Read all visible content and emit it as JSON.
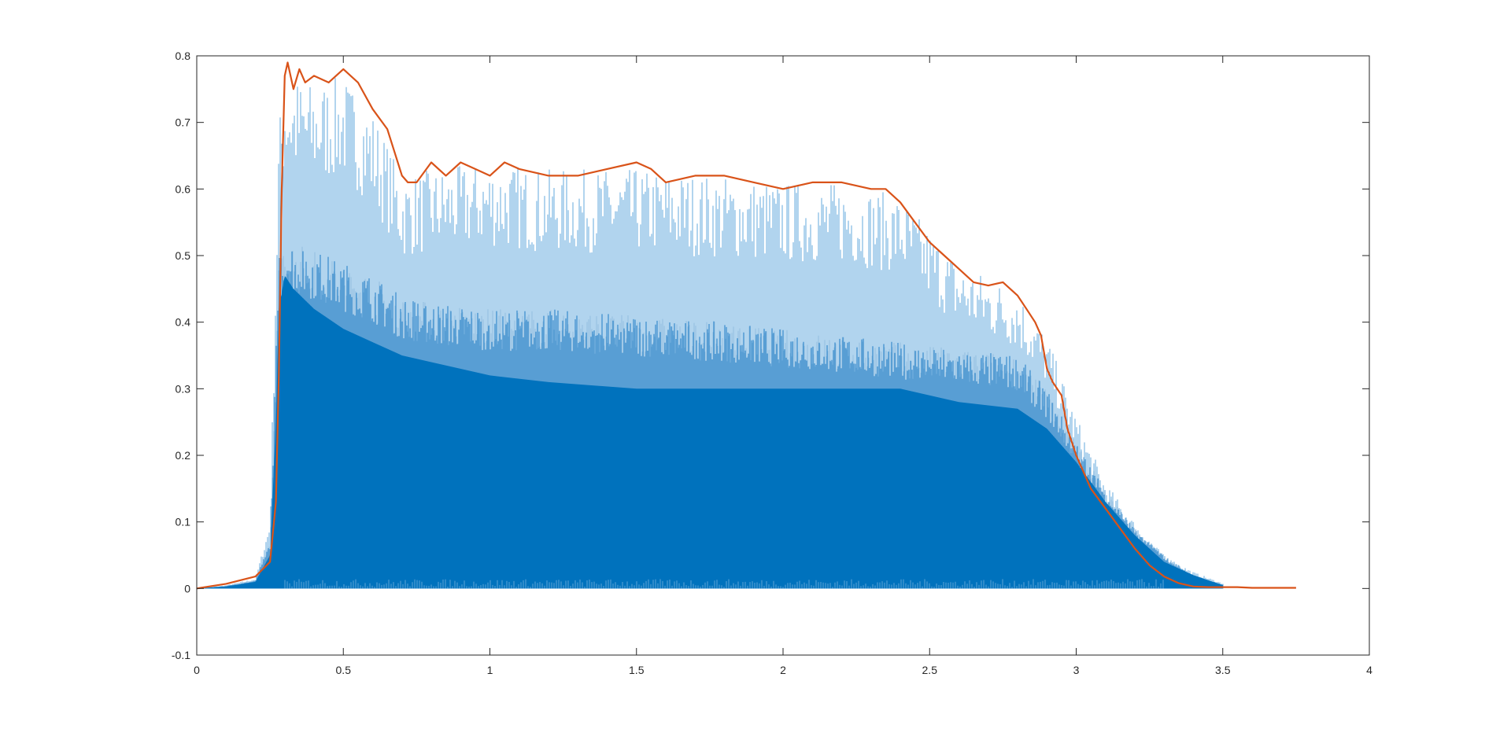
{
  "chart_data": {
    "type": "area",
    "title": "",
    "xlabel": "",
    "ylabel": "",
    "xlim": [
      0,
      4
    ],
    "ylim": [
      -0.1,
      0.8
    ],
    "x_ticks": [
      "0",
      "0.5",
      "1",
      "1.5",
      "2",
      "2.5",
      "3",
      "3.5",
      "4"
    ],
    "y_ticks": [
      "-0.1",
      "0",
      "0.1",
      "0.2",
      "0.3",
      "0.4",
      "0.5",
      "0.6",
      "0.7",
      "0.8"
    ],
    "grid": false,
    "legend": "none",
    "colors": {
      "signal": "#0072BD",
      "signal_light": "#63A8DC",
      "envelope": "#D95319",
      "axes": "#262626"
    },
    "series": [
      {
        "description_key": "signal",
        "x": [
          0,
          0.1,
          0.2,
          0.25,
          0.27,
          0.28,
          0.3,
          0.33,
          0.4,
          0.5,
          0.6,
          0.7,
          0.8,
          1.0,
          1.2,
          1.5,
          1.8,
          2.0,
          2.2,
          2.4,
          2.6,
          2.8,
          2.9,
          3.0,
          3.1,
          3.2,
          3.3,
          3.4,
          3.5
        ],
        "dense_upper": [
          0.0,
          0.003,
          0.01,
          0.05,
          0.25,
          0.42,
          0.47,
          0.45,
          0.42,
          0.39,
          0.37,
          0.35,
          0.34,
          0.32,
          0.31,
          0.3,
          0.3,
          0.3,
          0.3,
          0.3,
          0.28,
          0.27,
          0.24,
          0.19,
          0.13,
          0.08,
          0.04,
          0.02,
          0.005
        ],
        "mid_upper": [
          0.0,
          0.004,
          0.012,
          0.07,
          0.35,
          0.5,
          0.53,
          0.52,
          0.51,
          0.49,
          0.47,
          0.44,
          0.43,
          0.42,
          0.42,
          0.41,
          0.4,
          0.39,
          0.38,
          0.37,
          0.36,
          0.35,
          0.3,
          0.22,
          0.15,
          0.09,
          0.05,
          0.02,
          0.006
        ],
        "peak_upper": [
          0.0,
          0.005,
          0.015,
          0.1,
          0.5,
          0.7,
          0.78,
          0.77,
          0.76,
          0.77,
          0.72,
          0.62,
          0.63,
          0.64,
          0.63,
          0.63,
          0.62,
          0.61,
          0.61,
          0.59,
          0.49,
          0.45,
          0.38,
          0.26,
          0.16,
          0.1,
          0.05,
          0.025,
          0.008
        ]
      },
      {
        "description_key": "envelope",
        "x": [
          0,
          0.1,
          0.2,
          0.25,
          0.27,
          0.28,
          0.29,
          0.3,
          0.31,
          0.33,
          0.35,
          0.37,
          0.4,
          0.45,
          0.5,
          0.55,
          0.6,
          0.65,
          0.7,
          0.72,
          0.75,
          0.8,
          0.85,
          0.9,
          0.95,
          1.0,
          1.05,
          1.1,
          1.2,
          1.3,
          1.4,
          1.5,
          1.55,
          1.6,
          1.7,
          1.8,
          1.9,
          2.0,
          2.1,
          2.2,
          2.3,
          2.35,
          2.4,
          2.45,
          2.5,
          2.55,
          2.6,
          2.65,
          2.7,
          2.75,
          2.8,
          2.83,
          2.86,
          2.88,
          2.9,
          2.92,
          2.95,
          2.97,
          3.0,
          3.05,
          3.1,
          3.15,
          3.2,
          3.25,
          3.3,
          3.35,
          3.4,
          3.45,
          3.5,
          3.55,
          3.6,
          3.65,
          3.7,
          3.75
        ],
        "y": [
          0.0,
          0.007,
          0.018,
          0.04,
          0.13,
          0.32,
          0.6,
          0.77,
          0.79,
          0.75,
          0.78,
          0.76,
          0.77,
          0.76,
          0.78,
          0.76,
          0.72,
          0.69,
          0.62,
          0.61,
          0.61,
          0.64,
          0.62,
          0.64,
          0.63,
          0.62,
          0.64,
          0.63,
          0.62,
          0.62,
          0.63,
          0.64,
          0.63,
          0.61,
          0.62,
          0.62,
          0.61,
          0.6,
          0.61,
          0.61,
          0.6,
          0.6,
          0.58,
          0.55,
          0.52,
          0.5,
          0.48,
          0.46,
          0.455,
          0.46,
          0.44,
          0.42,
          0.4,
          0.38,
          0.33,
          0.31,
          0.29,
          0.24,
          0.2,
          0.15,
          0.12,
          0.09,
          0.06,
          0.035,
          0.018,
          0.008,
          0.003,
          0.002,
          0.002,
          0.002,
          0.001,
          0.001,
          0.001,
          0.001
        ]
      }
    ]
  }
}
